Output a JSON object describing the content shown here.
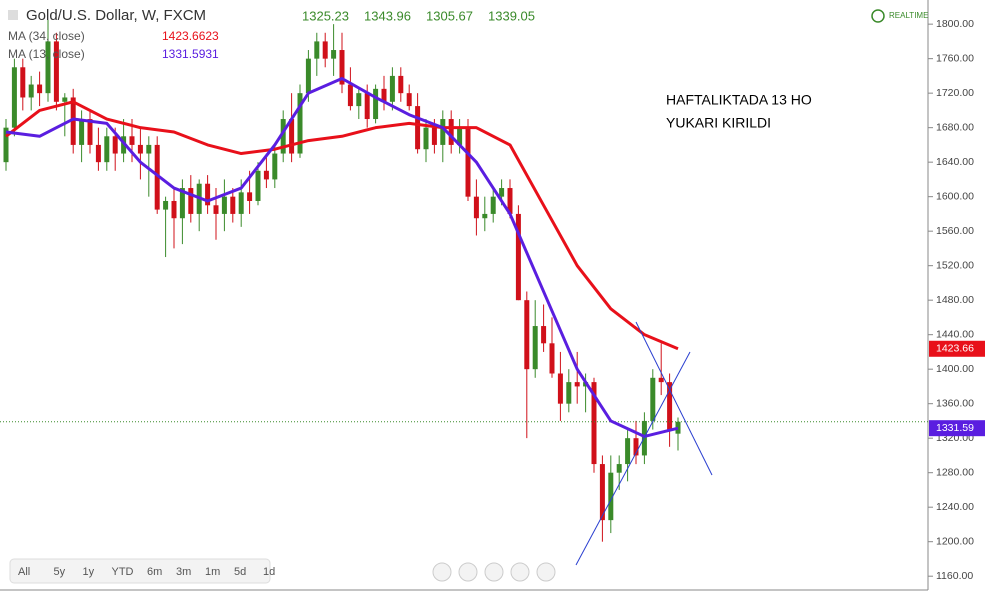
{
  "chart_data": {
    "type": "candlestick",
    "title": "Gold/U.S. Dollar, W, FXCM",
    "realtime": "REALTIME",
    "annotation": [
      "HAFTALIKTADA 13 HO",
      "YUKARI KIRILDI"
    ],
    "ranges": [
      "All",
      "5y",
      "1y",
      "YTD",
      "6m",
      "3m",
      "1m",
      "5d",
      "1d"
    ],
    "up_color": "#3a8a2a",
    "down_color": "#d0101a",
    "ylim": [
      1144,
      1828
    ],
    "yticks": [
      {
        "value": 1160,
        "label": "1160.00"
      },
      {
        "value": 1200,
        "label": "1200.00"
      },
      {
        "value": 1240,
        "label": "1240.00"
      },
      {
        "value": 1280,
        "label": "1280.00"
      },
      {
        "value": 1320,
        "label": "1320.00"
      },
      {
        "value": 1360,
        "label": "1360.00"
      },
      {
        "value": 1400,
        "label": "1400.00"
      },
      {
        "value": 1440,
        "label": "1440.00"
      },
      {
        "value": 1480,
        "label": "1480.00"
      },
      {
        "value": 1520,
        "label": "1520.00"
      },
      {
        "value": 1560,
        "label": "1560.00"
      },
      {
        "value": 1600,
        "label": "1600.00"
      },
      {
        "value": 1640,
        "label": "1640.00"
      },
      {
        "value": 1680,
        "label": "1680.00"
      },
      {
        "value": 1720,
        "label": "1720.00"
      },
      {
        "value": 1760,
        "label": "1760.00"
      },
      {
        "value": 1800,
        "label": "1800.00"
      }
    ],
    "ohlc": [
      [
        1640,
        1690,
        1630,
        1680
      ],
      [
        1680,
        1760,
        1670,
        1750
      ],
      [
        1750,
        1760,
        1700,
        1715
      ],
      [
        1715,
        1740,
        1700,
        1730
      ],
      [
        1730,
        1745,
        1705,
        1720
      ],
      [
        1720,
        1805,
        1710,
        1780
      ],
      [
        1780,
        1790,
        1700,
        1710
      ],
      [
        1710,
        1720,
        1670,
        1715
      ],
      [
        1715,
        1725,
        1650,
        1660
      ],
      [
        1660,
        1700,
        1640,
        1690
      ],
      [
        1690,
        1700,
        1650,
        1660
      ],
      [
        1660,
        1680,
        1630,
        1640
      ],
      [
        1640,
        1680,
        1630,
        1670
      ],
      [
        1670,
        1680,
        1630,
        1650
      ],
      [
        1650,
        1690,
        1640,
        1670
      ],
      [
        1670,
        1690,
        1640,
        1660
      ],
      [
        1660,
        1680,
        1620,
        1650
      ],
      [
        1650,
        1670,
        1600,
        1660
      ],
      [
        1660,
        1670,
        1580,
        1585
      ],
      [
        1585,
        1600,
        1530,
        1595
      ],
      [
        1595,
        1610,
        1540,
        1575
      ],
      [
        1575,
        1620,
        1545,
        1610
      ],
      [
        1610,
        1625,
        1570,
        1580
      ],
      [
        1580,
        1620,
        1560,
        1615
      ],
      [
        1615,
        1625,
        1580,
        1590
      ],
      [
        1590,
        1610,
        1550,
        1580
      ],
      [
        1580,
        1620,
        1560,
        1600
      ],
      [
        1600,
        1610,
        1570,
        1580
      ],
      [
        1580,
        1620,
        1565,
        1605
      ],
      [
        1605,
        1630,
        1580,
        1595
      ],
      [
        1595,
        1640,
        1590,
        1630
      ],
      [
        1630,
        1650,
        1610,
        1620
      ],
      [
        1620,
        1660,
        1610,
        1650
      ],
      [
        1650,
        1700,
        1640,
        1690
      ],
      [
        1690,
        1720,
        1640,
        1650
      ],
      [
        1650,
        1730,
        1645,
        1720
      ],
      [
        1720,
        1770,
        1710,
        1760
      ],
      [
        1760,
        1790,
        1740,
        1780
      ],
      [
        1780,
        1790,
        1750,
        1760
      ],
      [
        1760,
        1800,
        1740,
        1770
      ],
      [
        1770,
        1790,
        1720,
        1730
      ],
      [
        1730,
        1750,
        1700,
        1705
      ],
      [
        1705,
        1725,
        1690,
        1720
      ],
      [
        1720,
        1730,
        1680,
        1690
      ],
      [
        1690,
        1730,
        1685,
        1725
      ],
      [
        1725,
        1740,
        1700,
        1710
      ],
      [
        1710,
        1750,
        1700,
        1740
      ],
      [
        1740,
        1750,
        1710,
        1720
      ],
      [
        1720,
        1730,
        1700,
        1705
      ],
      [
        1705,
        1720,
        1650,
        1655
      ],
      [
        1655,
        1690,
        1640,
        1680
      ],
      [
        1680,
        1690,
        1650,
        1660
      ],
      [
        1660,
        1700,
        1640,
        1690
      ],
      [
        1690,
        1700,
        1650,
        1660
      ],
      [
        1660,
        1690,
        1650,
        1680
      ],
      [
        1680,
        1690,
        1595,
        1600
      ],
      [
        1600,
        1620,
        1555,
        1575
      ],
      [
        1575,
        1600,
        1560,
        1580
      ],
      [
        1580,
        1610,
        1570,
        1600
      ],
      [
        1600,
        1620,
        1590,
        1610
      ],
      [
        1610,
        1620,
        1575,
        1580
      ],
      [
        1580,
        1590,
        1480,
        1480
      ],
      [
        1480,
        1490,
        1320,
        1400
      ],
      [
        1400,
        1480,
        1390,
        1450
      ],
      [
        1450,
        1475,
        1420,
        1430
      ],
      [
        1430,
        1460,
        1390,
        1395
      ],
      [
        1395,
        1420,
        1340,
        1360
      ],
      [
        1360,
        1400,
        1350,
        1385
      ],
      [
        1385,
        1420,
        1360,
        1380
      ],
      [
        1380,
        1395,
        1350,
        1385
      ],
      [
        1385,
        1390,
        1280,
        1290
      ],
      [
        1290,
        1300,
        1200,
        1225
      ],
      [
        1225,
        1300,
        1210,
        1280
      ],
      [
        1280,
        1300,
        1260,
        1290
      ],
      [
        1290,
        1330,
        1270,
        1320
      ],
      [
        1320,
        1340,
        1290,
        1300
      ],
      [
        1300,
        1350,
        1290,
        1340
      ],
      [
        1340,
        1400,
        1330,
        1390
      ],
      [
        1390,
        1430,
        1370,
        1385
      ],
      [
        1385,
        1395,
        1310,
        1330
      ],
      [
        1325.23,
        1343.96,
        1305.67,
        1339.05
      ]
    ],
    "series": [
      {
        "name": "MA (34, close)",
        "color": "#e8101a",
        "x": [
          0,
          4,
          8,
          12,
          16,
          20,
          24,
          28,
          32,
          36,
          40,
          44,
          48,
          52,
          56,
          60,
          64,
          68,
          72,
          76,
          80
        ],
        "values": [
          1670,
          1700,
          1710,
          1690,
          1680,
          1675,
          1660,
          1650,
          1655,
          1665,
          1670,
          1680,
          1685,
          1680,
          1680,
          1660,
          1590,
          1520,
          1470,
          1440,
          1423.6623
        ],
        "value_label": "1423.66"
      },
      {
        "name": "MA (13, close)",
        "color": "#5a1ee0",
        "x": [
          0,
          4,
          8,
          12,
          16,
          20,
          24,
          28,
          32,
          36,
          40,
          44,
          48,
          52,
          56,
          60,
          64,
          68,
          72,
          76,
          80
        ],
        "values": [
          1675,
          1670,
          1690,
          1685,
          1640,
          1610,
          1595,
          1610,
          1660,
          1720,
          1737,
          1715,
          1695,
          1680,
          1640,
          1580,
          1490,
          1400,
          1340,
          1322,
          1331.5931
        ],
        "value_label": "1331.59"
      }
    ]
  }
}
